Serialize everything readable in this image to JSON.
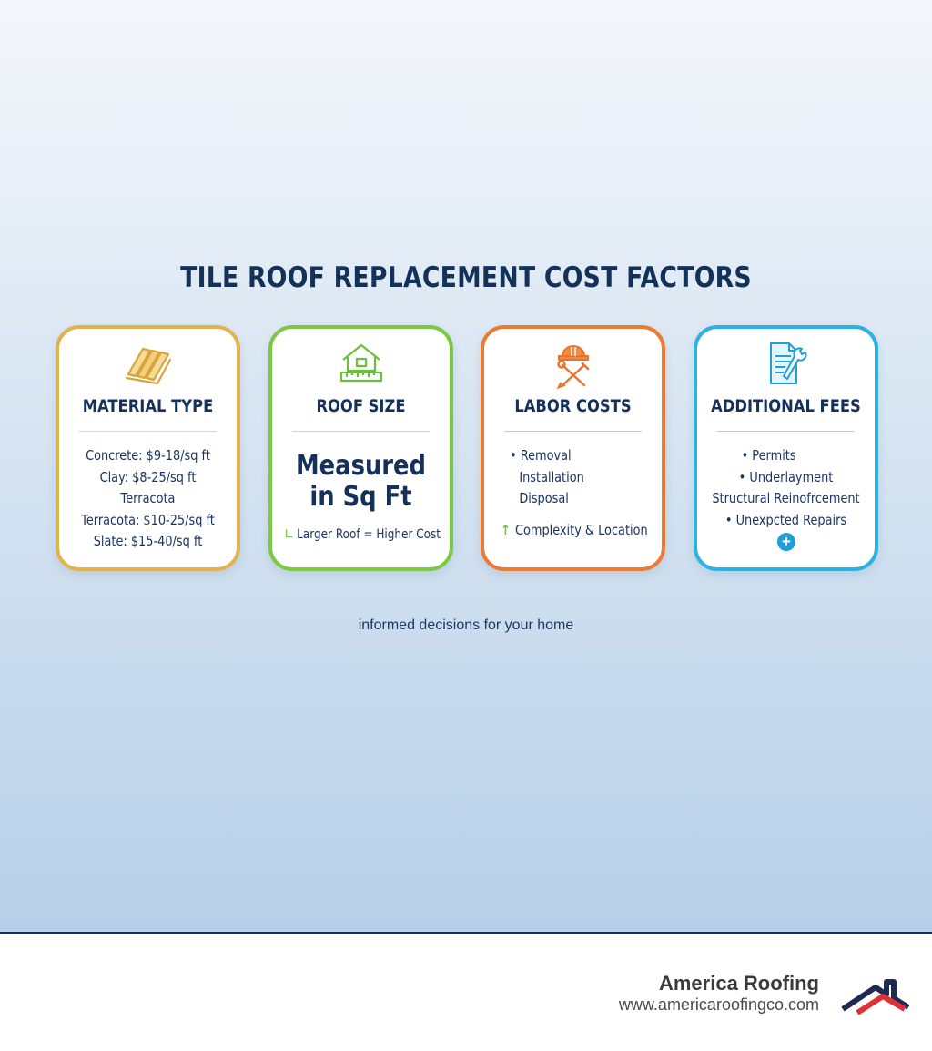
{
  "title": "TILE ROOF REPLACEMENT COST FACTORS",
  "cards": [
    {
      "icon": "roof-tiles-icon",
      "heading": "MATERIAL TYPE",
      "lines": [
        "Concrete: $9-18/sq ft",
        "Clay: $8-25/sq ft",
        "Terracota",
        "Terracota: $10-25/sq ft",
        "Slate: $15-40/sq ft"
      ]
    },
    {
      "icon": "house-ruler-icon",
      "heading": "ROOF SIZE",
      "big_text": "Measured in Sq Ft",
      "note": "Larger Roof = Higher Cost"
    },
    {
      "icon": "hardhat-tools-icon",
      "heading": "LABOR COSTS",
      "lines": [
        "• Removal",
        "Installation",
        "Disposal"
      ],
      "extra": "Complexity & Location"
    },
    {
      "icon": "document-wrench-icon",
      "heading": "ADDITIONAL FEES",
      "lines": [
        "• Permits",
        "• Underlayment",
        "Structural Reinofrcement",
        "• Unexpcted Repairs"
      ]
    }
  ],
  "tagline": "informed decisions for your home",
  "footer": {
    "brand": "America Roofing",
    "url": "www.americaroofingco.com"
  },
  "colors": {
    "material": "#e2b24d",
    "size": "#7bc943",
    "labor": "#ec7a33",
    "fees": "#2db1e2",
    "navy": "#14315b",
    "logo_red": "#e02f35"
  }
}
